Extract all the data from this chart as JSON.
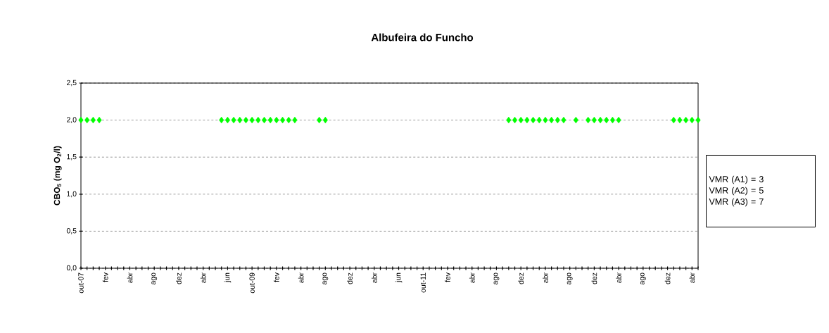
{
  "chart_data": {
    "type": "scatter",
    "title": "Albufeira do Funcho",
    "ylabel": "**CBO$_{5}$ (mg O$_{2}$/l)**",
    "categories": [
      "out-07",
      null,
      null,
      null,
      "fev",
      null,
      null,
      null,
      "abr",
      null,
      null,
      null,
      "ago",
      null,
      null,
      null,
      "dez",
      null,
      null,
      null,
      "abr",
      null,
      null,
      null,
      "jun",
      null,
      null,
      null,
      "out-09",
      null,
      null,
      null,
      "fev",
      null,
      null,
      null,
      "abr",
      null,
      null,
      null,
      "ago",
      null,
      null,
      null,
      "dez",
      null,
      null,
      null,
      "abr",
      null,
      null,
      null,
      "jun",
      null,
      null,
      null,
      "out-11",
      null,
      null,
      null,
      "fev",
      null,
      null,
      null,
      "abr",
      null,
      null,
      null,
      "ago",
      null,
      null,
      null,
      "dez",
      null,
      null,
      null,
      "abr",
      null,
      null,
      null,
      "ago",
      null,
      null,
      null,
      "dez",
      null,
      null,
      null,
      "abr",
      null,
      null,
      null,
      "ago",
      null,
      null,
      null,
      "dez",
      null,
      null,
      null,
      "abr",
      null
    ],
    "series": [
      {
        "color": "#00ff00",
        "values": [
          2,
          2,
          2,
          2,
          null,
          null,
          null,
          null,
          null,
          null,
          null,
          null,
          null,
          null,
          null,
          null,
          null,
          null,
          null,
          null,
          null,
          null,
          null,
          2,
          2,
          2,
          2,
          2,
          2,
          2,
          2,
          2,
          2,
          2,
          2,
          2,
          null,
          null,
          null,
          2,
          2,
          null,
          null,
          null,
          null,
          null,
          null,
          null,
          null,
          null,
          null,
          null,
          null,
          null,
          null,
          null,
          null,
          null,
          null,
          null,
          null,
          null,
          null,
          null,
          null,
          null,
          null,
          null,
          null,
          null,
          2,
          2,
          2,
          2,
          2,
          2,
          2,
          2,
          2,
          2,
          null,
          2,
          null,
          2,
          2,
          2,
          2,
          2,
          2,
          null,
          null,
          null,
          null,
          null,
          null,
          null,
          null,
          2,
          2,
          2,
          2,
          2
        ]
      }
    ],
    "marker": "diamond",
    "grid": "y",
    "ylim": [
      0,
      2.5
    ],
    "yticks": [
      {
        "value": 0,
        "label": "0,0"
      },
      {
        "value": 0.5,
        "label": "0,5"
      },
      {
        "value": 1,
        "label": "1,0"
      },
      {
        "value": 1.5,
        "label": "1,5"
      },
      {
        "value": 2,
        "label": "2,0"
      },
      {
        "value": 2.5,
        "label": "2,5"
      }
    ],
    "annotations": [
      "VMR (A1) = 3",
      "VMR (A2) = 5",
      "VMR (A3) = 7"
    ]
  }
}
